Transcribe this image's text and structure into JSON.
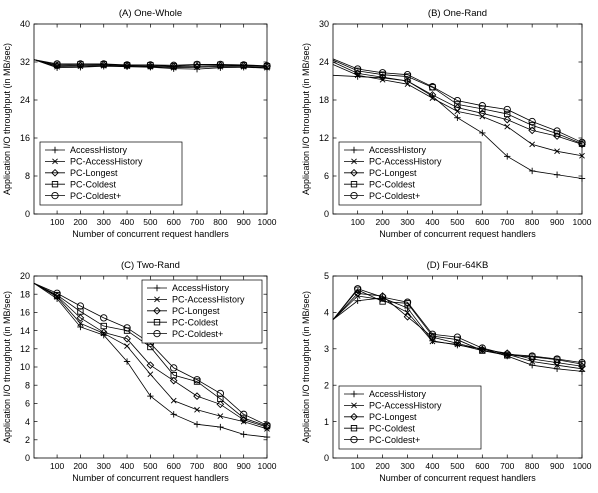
{
  "figure": {
    "x_label": "Number of concurrent request handlers",
    "y_label": "Application I/O throughput (in MB/sec)"
  },
  "chart_data": [
    {
      "type": "line",
      "title": "(A) One-Whole",
      "xlabel": "Number of concurrent request handlers",
      "ylabel": "Application I/O throughput (in MB/sec)",
      "x": [
        1,
        100,
        200,
        300,
        400,
        500,
        600,
        700,
        800,
        900,
        1000
      ],
      "xticks": [
        100,
        200,
        300,
        400,
        500,
        600,
        700,
        800,
        900,
        1000
      ],
      "xlim": [
        1,
        1000
      ],
      "ylim": [
        0,
        40
      ],
      "yticks": [
        0,
        8,
        16,
        24,
        32,
        40
      ],
      "legend_position": "bottom-left",
      "series": [
        {
          "name": "AccessHistory",
          "marker": "plus",
          "values": [
            32.5,
            30.8,
            30.9,
            31.1,
            31.0,
            30.9,
            30.6,
            30.5,
            30.8,
            30.9,
            30.7
          ]
        },
        {
          "name": "PC-AccessHistory",
          "marker": "x",
          "values": [
            32.5,
            31.0,
            31.1,
            31.2,
            31.1,
            31.0,
            30.8,
            30.9,
            31.0,
            31.0,
            30.8
          ]
        },
        {
          "name": "PC-Longest",
          "marker": "diamond",
          "values": [
            32.5,
            31.2,
            31.3,
            31.4,
            31.2,
            31.1,
            31.0,
            31.1,
            31.2,
            31.2,
            31.0
          ]
        },
        {
          "name": "PC-Coldest",
          "marker": "square",
          "values": [
            32.5,
            31.4,
            31.5,
            31.5,
            31.3,
            31.3,
            31.1,
            31.4,
            31.4,
            31.3,
            31.1
          ]
        },
        {
          "name": "PC-Coldest+",
          "marker": "circle",
          "values": [
            32.5,
            31.6,
            31.6,
            31.6,
            31.4,
            31.4,
            31.3,
            31.5,
            31.5,
            31.4,
            31.2
          ]
        }
      ]
    },
    {
      "type": "line",
      "title": "(B) One-Rand",
      "xlabel": "Number of concurrent request handlers",
      "ylabel": "Application I/O throughput (in MB/sec)",
      "x": [
        1,
        100,
        200,
        300,
        400,
        500,
        600,
        700,
        800,
        900,
        1000
      ],
      "xticks": [
        100,
        200,
        300,
        400,
        500,
        600,
        700,
        800,
        900,
        1000
      ],
      "xlim": [
        1,
        1000
      ],
      "ylim": [
        0,
        30
      ],
      "yticks": [
        0,
        6,
        12,
        18,
        24,
        30
      ],
      "legend_position": "bottom-left",
      "series": [
        {
          "name": "AccessHistory",
          "marker": "plus",
          "values": [
            21.9,
            21.7,
            21.5,
            21.0,
            18.6,
            15.2,
            12.8,
            9.1,
            6.8,
            6.2,
            5.6
          ]
        },
        {
          "name": "PC-AccessHistory",
          "marker": "x",
          "values": [
            23.6,
            21.9,
            21.2,
            20.5,
            18.3,
            16.2,
            15.4,
            13.8,
            11.0,
            9.9,
            9.2
          ]
        },
        {
          "name": "PC-Longest",
          "marker": "diamond",
          "values": [
            24.0,
            22.2,
            21.6,
            21.0,
            18.8,
            16.8,
            15.9,
            14.9,
            13.2,
            12.3,
            11.0
          ]
        },
        {
          "name": "PC-Coldest",
          "marker": "square",
          "values": [
            24.3,
            22.6,
            22.0,
            21.7,
            20.0,
            17.3,
            16.6,
            15.8,
            14.0,
            12.7,
            11.1
          ]
        },
        {
          "name": "PC-Coldest+",
          "marker": "circle",
          "values": [
            24.5,
            22.9,
            22.3,
            22.0,
            20.1,
            17.9,
            17.1,
            16.5,
            14.6,
            13.1,
            11.3
          ]
        }
      ]
    },
    {
      "type": "line",
      "title": "(C) Two-Rand",
      "xlabel": "Number of concurrent request handlers",
      "ylabel": "Application I/O throughput (in MB/sec)",
      "x": [
        1,
        100,
        200,
        300,
        400,
        500,
        600,
        700,
        800,
        900,
        1000
      ],
      "xticks": [
        100,
        200,
        300,
        400,
        500,
        600,
        700,
        800,
        900,
        1000
      ],
      "xlim": [
        1,
        1000
      ],
      "ylim": [
        0,
        20
      ],
      "yticks": [
        0,
        2,
        4,
        6,
        8,
        10,
        12,
        14,
        16,
        18,
        20
      ],
      "legend_position": "top-right",
      "series": [
        {
          "name": "AccessHistory",
          "marker": "plus",
          "values": [
            19.2,
            17.5,
            14.4,
            13.5,
            10.6,
            6.8,
            4.8,
            3.7,
            3.4,
            2.6,
            2.3
          ]
        },
        {
          "name": "PC-AccessHistory",
          "marker": "x",
          "values": [
            19.2,
            17.7,
            14.8,
            13.7,
            12.3,
            9.2,
            6.3,
            5.3,
            4.6,
            4.0,
            3.2
          ]
        },
        {
          "name": "PC-Longest",
          "marker": "diamond",
          "values": [
            19.2,
            17.8,
            15.4,
            13.8,
            13.1,
            10.2,
            8.5,
            6.8,
            5.9,
            4.2,
            3.4
          ]
        },
        {
          "name": "PC-Coldest",
          "marker": "square",
          "values": [
            19.2,
            17.9,
            16.1,
            14.5,
            14.0,
            12.2,
            9.1,
            8.4,
            6.5,
            4.4,
            3.5
          ]
        },
        {
          "name": "PC-Coldest+",
          "marker": "circle",
          "values": [
            19.2,
            18.1,
            16.7,
            15.4,
            14.3,
            12.6,
            9.9,
            8.6,
            7.1,
            4.8,
            3.6
          ]
        }
      ]
    },
    {
      "type": "line",
      "title": "(D) Four-64KB",
      "xlabel": "Number of concurrent request handlers",
      "ylabel": "Application I/O throughput (in MB/sec)",
      "x": [
        1,
        100,
        200,
        300,
        400,
        500,
        600,
        700,
        800,
        900,
        1000
      ],
      "xticks": [
        100,
        200,
        300,
        400,
        500,
        600,
        700,
        800,
        900,
        1000
      ],
      "xlim": [
        1,
        1000
      ],
      "ylim": [
        0,
        5
      ],
      "yticks": [
        0,
        1,
        2,
        3,
        4,
        5
      ],
      "legend_position": "bottom-left",
      "series": [
        {
          "name": "AccessHistory",
          "marker": "plus",
          "values": [
            3.8,
            4.32,
            4.4,
            4.12,
            3.22,
            3.1,
            3.0,
            2.8,
            2.55,
            2.45,
            2.38
          ]
        },
        {
          "name": "PC-AccessHistory",
          "marker": "x",
          "values": [
            3.8,
            4.45,
            4.35,
            4.0,
            3.2,
            3.12,
            2.95,
            2.85,
            2.65,
            2.55,
            2.45
          ]
        },
        {
          "name": "PC-Longest",
          "marker": "diamond",
          "values": [
            3.8,
            4.52,
            4.45,
            3.88,
            3.32,
            3.15,
            2.98,
            2.88,
            2.72,
            2.62,
            2.52
          ]
        },
        {
          "name": "PC-Coldest",
          "marker": "square",
          "values": [
            3.8,
            4.62,
            4.3,
            4.25,
            3.35,
            3.25,
            2.95,
            2.82,
            2.78,
            2.7,
            2.58
          ]
        },
        {
          "name": "PC-Coldest+",
          "marker": "circle",
          "values": [
            3.8,
            4.65,
            4.42,
            4.28,
            3.4,
            3.32,
            3.02,
            2.85,
            2.8,
            2.72,
            2.62
          ]
        }
      ]
    }
  ]
}
